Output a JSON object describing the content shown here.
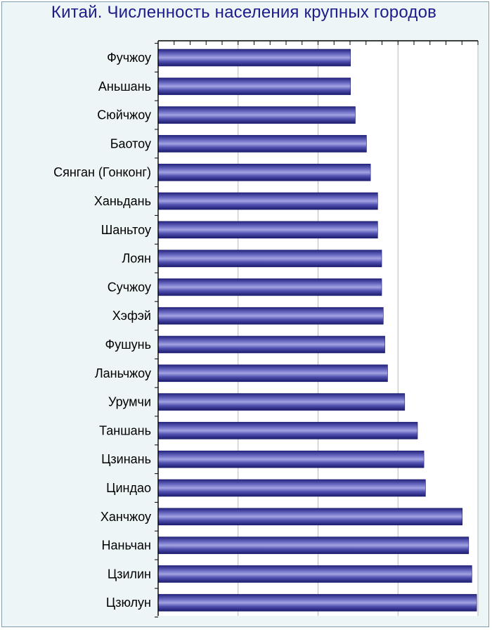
{
  "chart_data": {
    "type": "bar",
    "orientation": "horizontal",
    "title": "Китай. Численность населения крупных городов",
    "xlabel": "",
    "ylabel": "",
    "xlim": [
      0,
      2000
    ],
    "grid": true,
    "categories": [
      "Фучжоу",
      "Аньшань",
      "Сюйчжоу",
      "Баотоу",
      "Сянган (Гонконг)",
      "Ханьдань",
      "Шаньтоу",
      "Лоян",
      "Сучжоу",
      "Хэфэй",
      "Фушунь",
      "Ланьчжоу",
      "Урумчи",
      "Таншань",
      "Цзинань",
      "Циндао",
      "Ханчжоу",
      "Наньчан",
      "Цзилин",
      "Цзюлун"
    ],
    "values": [
      1203,
      1203,
      1233,
      1303,
      1328,
      1373,
      1373,
      1398,
      1398,
      1408,
      1418,
      1435,
      1542,
      1622,
      1662,
      1672,
      1902,
      1942,
      1962,
      1992
    ],
    "colors": {
      "bar": "#2b2b8f",
      "bar_light": "#8f8fd6",
      "grid": "#b9b9b9",
      "axis": "#000000"
    }
  }
}
